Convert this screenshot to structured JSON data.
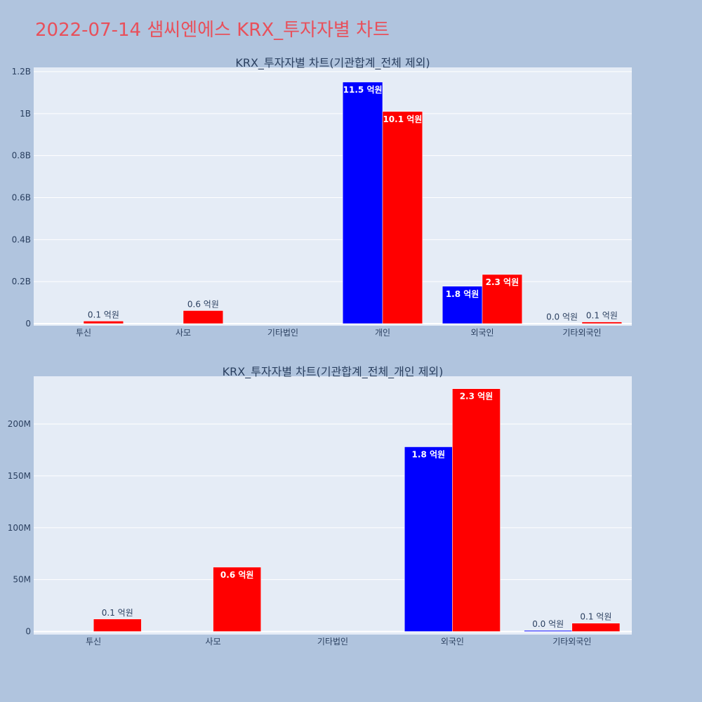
{
  "title": "2022-07-14 샘씨엔에스 KRX_투자자별 차트",
  "colors": {
    "series_a": "#0000ff",
    "series_b": "#ff0000",
    "plot_bg": "#e5ecf6",
    "page_bg": "#b0c4de",
    "title": "#e8505b"
  },
  "chart_data": [
    {
      "type": "bar",
      "title": "KRX_투자자별 차트(기관합계_전체 제외)",
      "categories": [
        "투신",
        "사모",
        "기타법인",
        "개인",
        "외국인",
        "기타외국인"
      ],
      "series": [
        {
          "values": [
            0,
            0,
            0,
            1150000000,
            178000000,
            1000000
          ]
        },
        {
          "values": [
            12000000,
            62000000,
            0,
            1010000000,
            234000000,
            8000000
          ]
        }
      ],
      "labels": [
        [
          "",
          "",
          "",
          "11.5 억원",
          "1.8 억원",
          "0.0 억원"
        ],
        [
          "0.1 억원",
          "0.6 억원",
          "",
          "10.1 억원",
          "2.3 억원",
          "0.1 억원"
        ]
      ],
      "yticks": [
        0,
        200000000,
        400000000,
        600000000,
        800000000,
        1000000000,
        1200000000
      ],
      "ytick_labels": [
        "0",
        "0.2B",
        "0.4B",
        "0.6B",
        "0.8B",
        "1B",
        "1.2B"
      ],
      "ylim": [
        -10000000,
        1220000000
      ],
      "grid": true,
      "xlabel": "",
      "ylabel": ""
    },
    {
      "type": "bar",
      "title": "KRX_투자자별 차트(기관합계_전체_개인 제외)",
      "categories": [
        "투신",
        "사모",
        "기타법인",
        "외국인",
        "기타외국인"
      ],
      "series": [
        {
          "values": [
            0,
            0,
            0,
            178000000,
            1000000
          ]
        },
        {
          "values": [
            12000000,
            62000000,
            0,
            234000000,
            8000000
          ]
        }
      ],
      "labels": [
        [
          "",
          "",
          "",
          "1.8 억원",
          "0.0 억원"
        ],
        [
          "0.1 억원",
          "0.6 억원",
          "",
          "2.3 억원",
          "0.1 억원"
        ]
      ],
      "yticks": [
        0,
        50000000,
        100000000,
        150000000,
        200000000
      ],
      "ytick_labels": [
        "0",
        "50M",
        "100M",
        "150M",
        "200M"
      ],
      "ylim": [
        -3000000,
        246000000
      ],
      "grid": true,
      "xlabel": "",
      "ylabel": ""
    }
  ]
}
